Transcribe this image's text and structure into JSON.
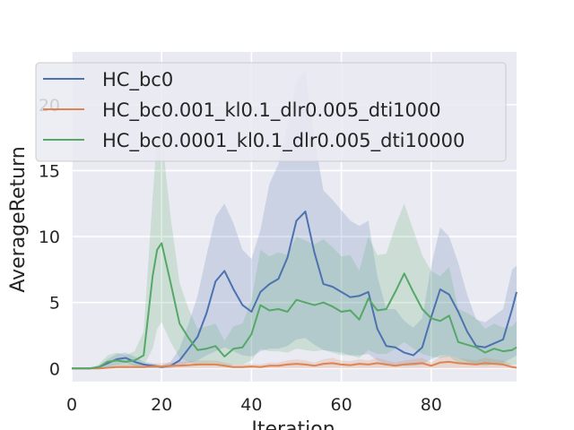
{
  "chart_data": {
    "type": "line",
    "title": "",
    "xlabel": "Iteration",
    "ylabel": "AverageReturn",
    "xlim": [
      0,
      99
    ],
    "ylim": [
      -1.0,
      24.0
    ],
    "xticks": [
      0,
      20,
      40,
      60,
      80
    ],
    "yticks": [
      0,
      5,
      10,
      15,
      20
    ],
    "grid": true,
    "legend_position": "top-left",
    "colors": {
      "background": "#eaeaf2",
      "grid": "#ffffff",
      "text": "#262626"
    },
    "series": [
      {
        "name": "HC_bc0",
        "color": "#4c72b0",
        "x": [
          0,
          2,
          4,
          6,
          8,
          10,
          12,
          14,
          16,
          18,
          20,
          22,
          24,
          26,
          28,
          30,
          32,
          34,
          36,
          38,
          40,
          42,
          44,
          46,
          48,
          50,
          52,
          54,
          56,
          58,
          60,
          62,
          64,
          66,
          68,
          70,
          72,
          74,
          76,
          78,
          80,
          82,
          84,
          86,
          88,
          90,
          92,
          94,
          96,
          98,
          99
        ],
        "mean": [
          0,
          0,
          0,
          0.1,
          0.4,
          0.7,
          0.8,
          0.5,
          0.3,
          0.2,
          0.1,
          0.2,
          0.6,
          1.5,
          2.4,
          4.2,
          6.6,
          7.4,
          6.0,
          4.8,
          4.3,
          5.8,
          6.4,
          6.8,
          8.4,
          11.2,
          11.9,
          8.8,
          6.4,
          6.2,
          5.8,
          5.4,
          5.5,
          5.8,
          3.0,
          1.7,
          1.6,
          1.2,
          1.0,
          1.6,
          3.9,
          6.0,
          5.6,
          4.3,
          2.8,
          1.7,
          1.6,
          1.9,
          2.2,
          4.5,
          5.8
        ],
        "lower": [
          0,
          0,
          0,
          0,
          0.1,
          0.3,
          0.4,
          0.2,
          0.1,
          0,
          0,
          0,
          0.2,
          0.4,
          0.6,
          1.0,
          1.3,
          1.6,
          1.3,
          1.0,
          0.9,
          1.3,
          1.5,
          1.5,
          1.7,
          2.2,
          2.3,
          1.8,
          1.4,
          1.3,
          1.2,
          1.0,
          1.0,
          1.1,
          0.6,
          0.3,
          0.3,
          0.2,
          0.2,
          0.3,
          0.7,
          1.0,
          1.0,
          0.8,
          0.5,
          0.3,
          0.3,
          0.3,
          0.4,
          0.8,
          1.0
        ],
        "upper": [
          0,
          0,
          0,
          0.2,
          0.7,
          1.1,
          1.2,
          0.9,
          0.5,
          0.4,
          0.2,
          0.5,
          1.5,
          3.4,
          5.5,
          8.6,
          11.5,
          12.5,
          11.0,
          9.0,
          8.3,
          10.5,
          14.0,
          15.5,
          18.5,
          21.8,
          22.5,
          17.5,
          13.5,
          12.8,
          12.0,
          11.2,
          10.8,
          11.2,
          7.0,
          4.5,
          4.5,
          3.6,
          3.1,
          3.8,
          7.8,
          10.7,
          10.0,
          8.0,
          5.6,
          3.7,
          3.5,
          4.0,
          4.5,
          7.5,
          7.8
        ]
      },
      {
        "name": "HC_bc0.001_kl0.1_dlr0.005_dti1000",
        "color": "#dd8452",
        "x": [
          0,
          2,
          4,
          6,
          8,
          10,
          12,
          14,
          16,
          18,
          20,
          22,
          24,
          26,
          28,
          30,
          32,
          34,
          36,
          38,
          40,
          42,
          44,
          46,
          48,
          50,
          52,
          54,
          56,
          58,
          60,
          62,
          64,
          66,
          68,
          70,
          72,
          74,
          76,
          78,
          80,
          82,
          84,
          86,
          88,
          90,
          92,
          94,
          96,
          98,
          99
        ],
        "mean": [
          0,
          0,
          0,
          0,
          0.05,
          0.1,
          0.1,
          0.1,
          0.1,
          0.15,
          0.15,
          0.2,
          0.2,
          0.25,
          0.3,
          0.3,
          0.3,
          0.2,
          0.1,
          0.1,
          0.15,
          0.1,
          0.2,
          0.2,
          0.3,
          0.35,
          0.3,
          0.2,
          0.35,
          0.4,
          0.3,
          0.25,
          0.35,
          0.3,
          0.4,
          0.3,
          0.2,
          0.3,
          0.35,
          0.4,
          0.2,
          0.45,
          0.5,
          0.4,
          0.35,
          0.3,
          0.4,
          0.35,
          0.3,
          0.1,
          0.05
        ],
        "lower": [
          0,
          0,
          0,
          0,
          0,
          0,
          0,
          0,
          0,
          0,
          0,
          0,
          0,
          0,
          0,
          0,
          0,
          0,
          0,
          0,
          0,
          0,
          0,
          0,
          0,
          0,
          0,
          0,
          0,
          0,
          0,
          0,
          0,
          0,
          0,
          0,
          0,
          0,
          0,
          0,
          0,
          0,
          0,
          0,
          0,
          0,
          0,
          0,
          0,
          0,
          0
        ],
        "upper": [
          0,
          0,
          0,
          0,
          0.1,
          0.3,
          0.3,
          0.3,
          0.3,
          0.35,
          0.4,
          0.45,
          0.5,
          0.55,
          0.6,
          0.6,
          0.6,
          0.45,
          0.3,
          0.3,
          0.35,
          0.3,
          0.45,
          0.45,
          0.6,
          0.7,
          0.6,
          0.45,
          0.7,
          0.8,
          0.6,
          0.55,
          0.7,
          0.6,
          0.8,
          0.6,
          0.45,
          0.6,
          0.7,
          0.8,
          0.45,
          0.9,
          1.0,
          0.8,
          0.7,
          0.6,
          0.8,
          0.7,
          0.6,
          0.3,
          0.15
        ]
      },
      {
        "name": "HC_bc0.0001_kl0.1_dlr0.005_dti10000",
        "color": "#55a868",
        "x": [
          0,
          2,
          4,
          6,
          8,
          10,
          12,
          14,
          16,
          18,
          19,
          20,
          22,
          24,
          26,
          28,
          30,
          32,
          34,
          36,
          38,
          40,
          42,
          44,
          46,
          48,
          50,
          52,
          54,
          56,
          58,
          60,
          62,
          64,
          66,
          68,
          70,
          72,
          74,
          76,
          78,
          80,
          82,
          84,
          86,
          88,
          90,
          92,
          94,
          96,
          98,
          99
        ],
        "mean": [
          0,
          0,
          0,
          0.1,
          0.5,
          0.6,
          0.5,
          0.6,
          1.0,
          7.0,
          9.0,
          9.5,
          6.5,
          3.4,
          2.3,
          1.4,
          1.5,
          1.7,
          0.9,
          1.5,
          1.6,
          2.6,
          4.8,
          4.4,
          4.5,
          4.3,
          5.2,
          5.0,
          4.8,
          5.0,
          4.7,
          4.3,
          4.4,
          3.7,
          5.3,
          4.4,
          4.5,
          5.8,
          7.2,
          5.8,
          4.5,
          3.8,
          3.6,
          4.0,
          2.0,
          1.8,
          1.6,
          1.2,
          1.5,
          1.3,
          1.4,
          1.6
        ],
        "lower": [
          0,
          0,
          0,
          0,
          0.1,
          0.2,
          0.2,
          0.2,
          0.2,
          1.5,
          3.0,
          3.5,
          2.0,
          0.8,
          0.5,
          0.2,
          0.3,
          0.4,
          0.1,
          0.3,
          0.3,
          0.6,
          1.5,
          1.3,
          1.3,
          1.2,
          1.5,
          1.4,
          1.3,
          1.4,
          1.2,
          1.0,
          1.0,
          0.8,
          1.4,
          1.1,
          1.1,
          1.5,
          2.0,
          1.5,
          1.1,
          0.9,
          0.8,
          0.9,
          0.4,
          0.4,
          0.3,
          0.2,
          0.3,
          0.2,
          0.3,
          0.3
        ],
        "upper": [
          0,
          0,
          0,
          0.3,
          1.0,
          1.2,
          1.0,
          1.3,
          2.8,
          13.0,
          17.5,
          17.8,
          11.5,
          6.5,
          4.5,
          3.0,
          3.2,
          3.4,
          2.1,
          3.2,
          3.4,
          5.2,
          9.0,
          8.5,
          8.8,
          8.6,
          10.0,
          9.7,
          9.4,
          9.8,
          9.2,
          8.5,
          8.6,
          7.4,
          10.0,
          8.6,
          8.7,
          10.8,
          12.5,
          10.5,
          8.6,
          7.4,
          7.0,
          7.7,
          4.5,
          4.2,
          3.8,
          3.0,
          3.4,
          3.1,
          3.2,
          3.6
        ]
      }
    ]
  }
}
